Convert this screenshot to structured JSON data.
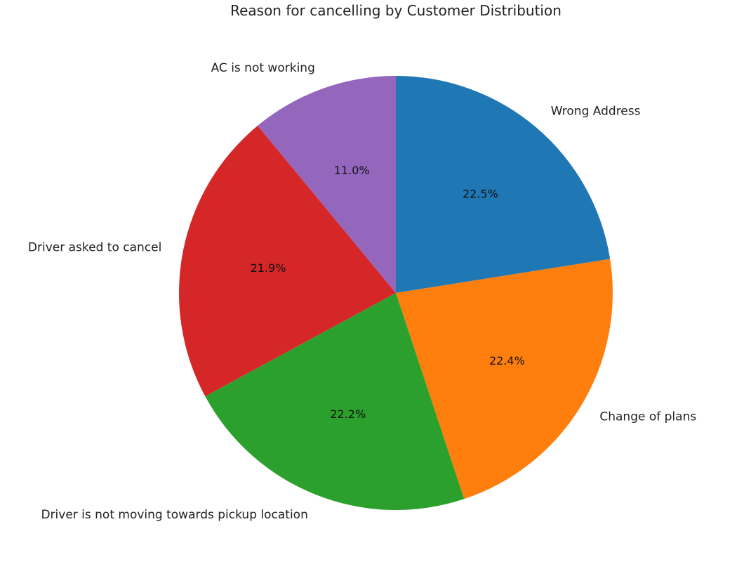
{
  "chart_data": {
    "type": "pie",
    "title": "Reason for cancelling by Customer Distribution",
    "start_angle_deg": 90,
    "direction": "clockwise",
    "slices": [
      {
        "label": "Wrong Address",
        "value": 22.5,
        "pct_label": "22.5%",
        "color": "#1f77b4"
      },
      {
        "label": "Change of plans",
        "value": 22.4,
        "pct_label": "22.4%",
        "color": "#ff7f0e"
      },
      {
        "label": "Driver is not moving towards pickup location",
        "value": 22.2,
        "pct_label": "22.2%",
        "color": "#2ca02c"
      },
      {
        "label": "Driver asked to cancel",
        "value": 21.9,
        "pct_label": "21.9%",
        "color": "#d62728"
      },
      {
        "label": "AC is not working",
        "value": 11.0,
        "pct_label": "11.0%",
        "color": "#9467bd"
      }
    ]
  }
}
